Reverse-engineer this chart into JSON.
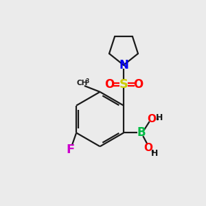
{
  "background_color": "#ebebeb",
  "bond_color": "#1a1a1a",
  "atom_colors": {
    "N": "#0000ee",
    "S": "#cccc00",
    "O": "#ff0000",
    "B": "#00bb44",
    "F": "#cc00cc",
    "H": "#1a1a1a"
  },
  "figsize": [
    3.0,
    3.0
  ],
  "dpi": 100
}
